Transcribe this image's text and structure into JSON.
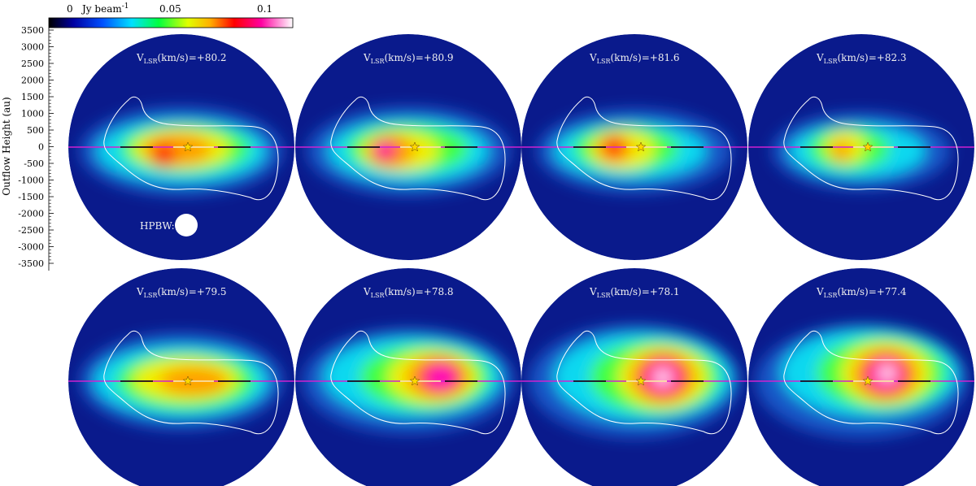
{
  "colorbar": {
    "unit_label": "Jy beam",
    "unit_exp": "-1",
    "ticks": [
      "0",
      "0.05",
      "0.1"
    ]
  },
  "y_axis": {
    "label": "Outflow Height (au)",
    "ticks": [
      "3500",
      "3000",
      "2500",
      "2000",
      "1500",
      "1000",
      "500",
      "0",
      "-500",
      "-1000",
      "-1500",
      "-2000",
      "-2500",
      "-3000",
      "-3500"
    ]
  },
  "panel_label_prefix": "V",
  "panel_label_sub": "LSR",
  "panel_label_unit": "(km/s)=",
  "beam_label": "HPBW:",
  "panels": [
    {
      "velocity": "+80.2"
    },
    {
      "velocity": "+80.9"
    },
    {
      "velocity": "+81.6"
    },
    {
      "velocity": "+82.3"
    },
    {
      "velocity": "+79.5"
    },
    {
      "velocity": "+78.8"
    },
    {
      "velocity": "+78.1"
    },
    {
      "velocity": "+77.4"
    }
  ],
  "colors": {
    "background_emission": "#0a1a8c",
    "contour": "#ffffff",
    "axis_line": "#d020d0",
    "star": "#ffd700"
  }
}
